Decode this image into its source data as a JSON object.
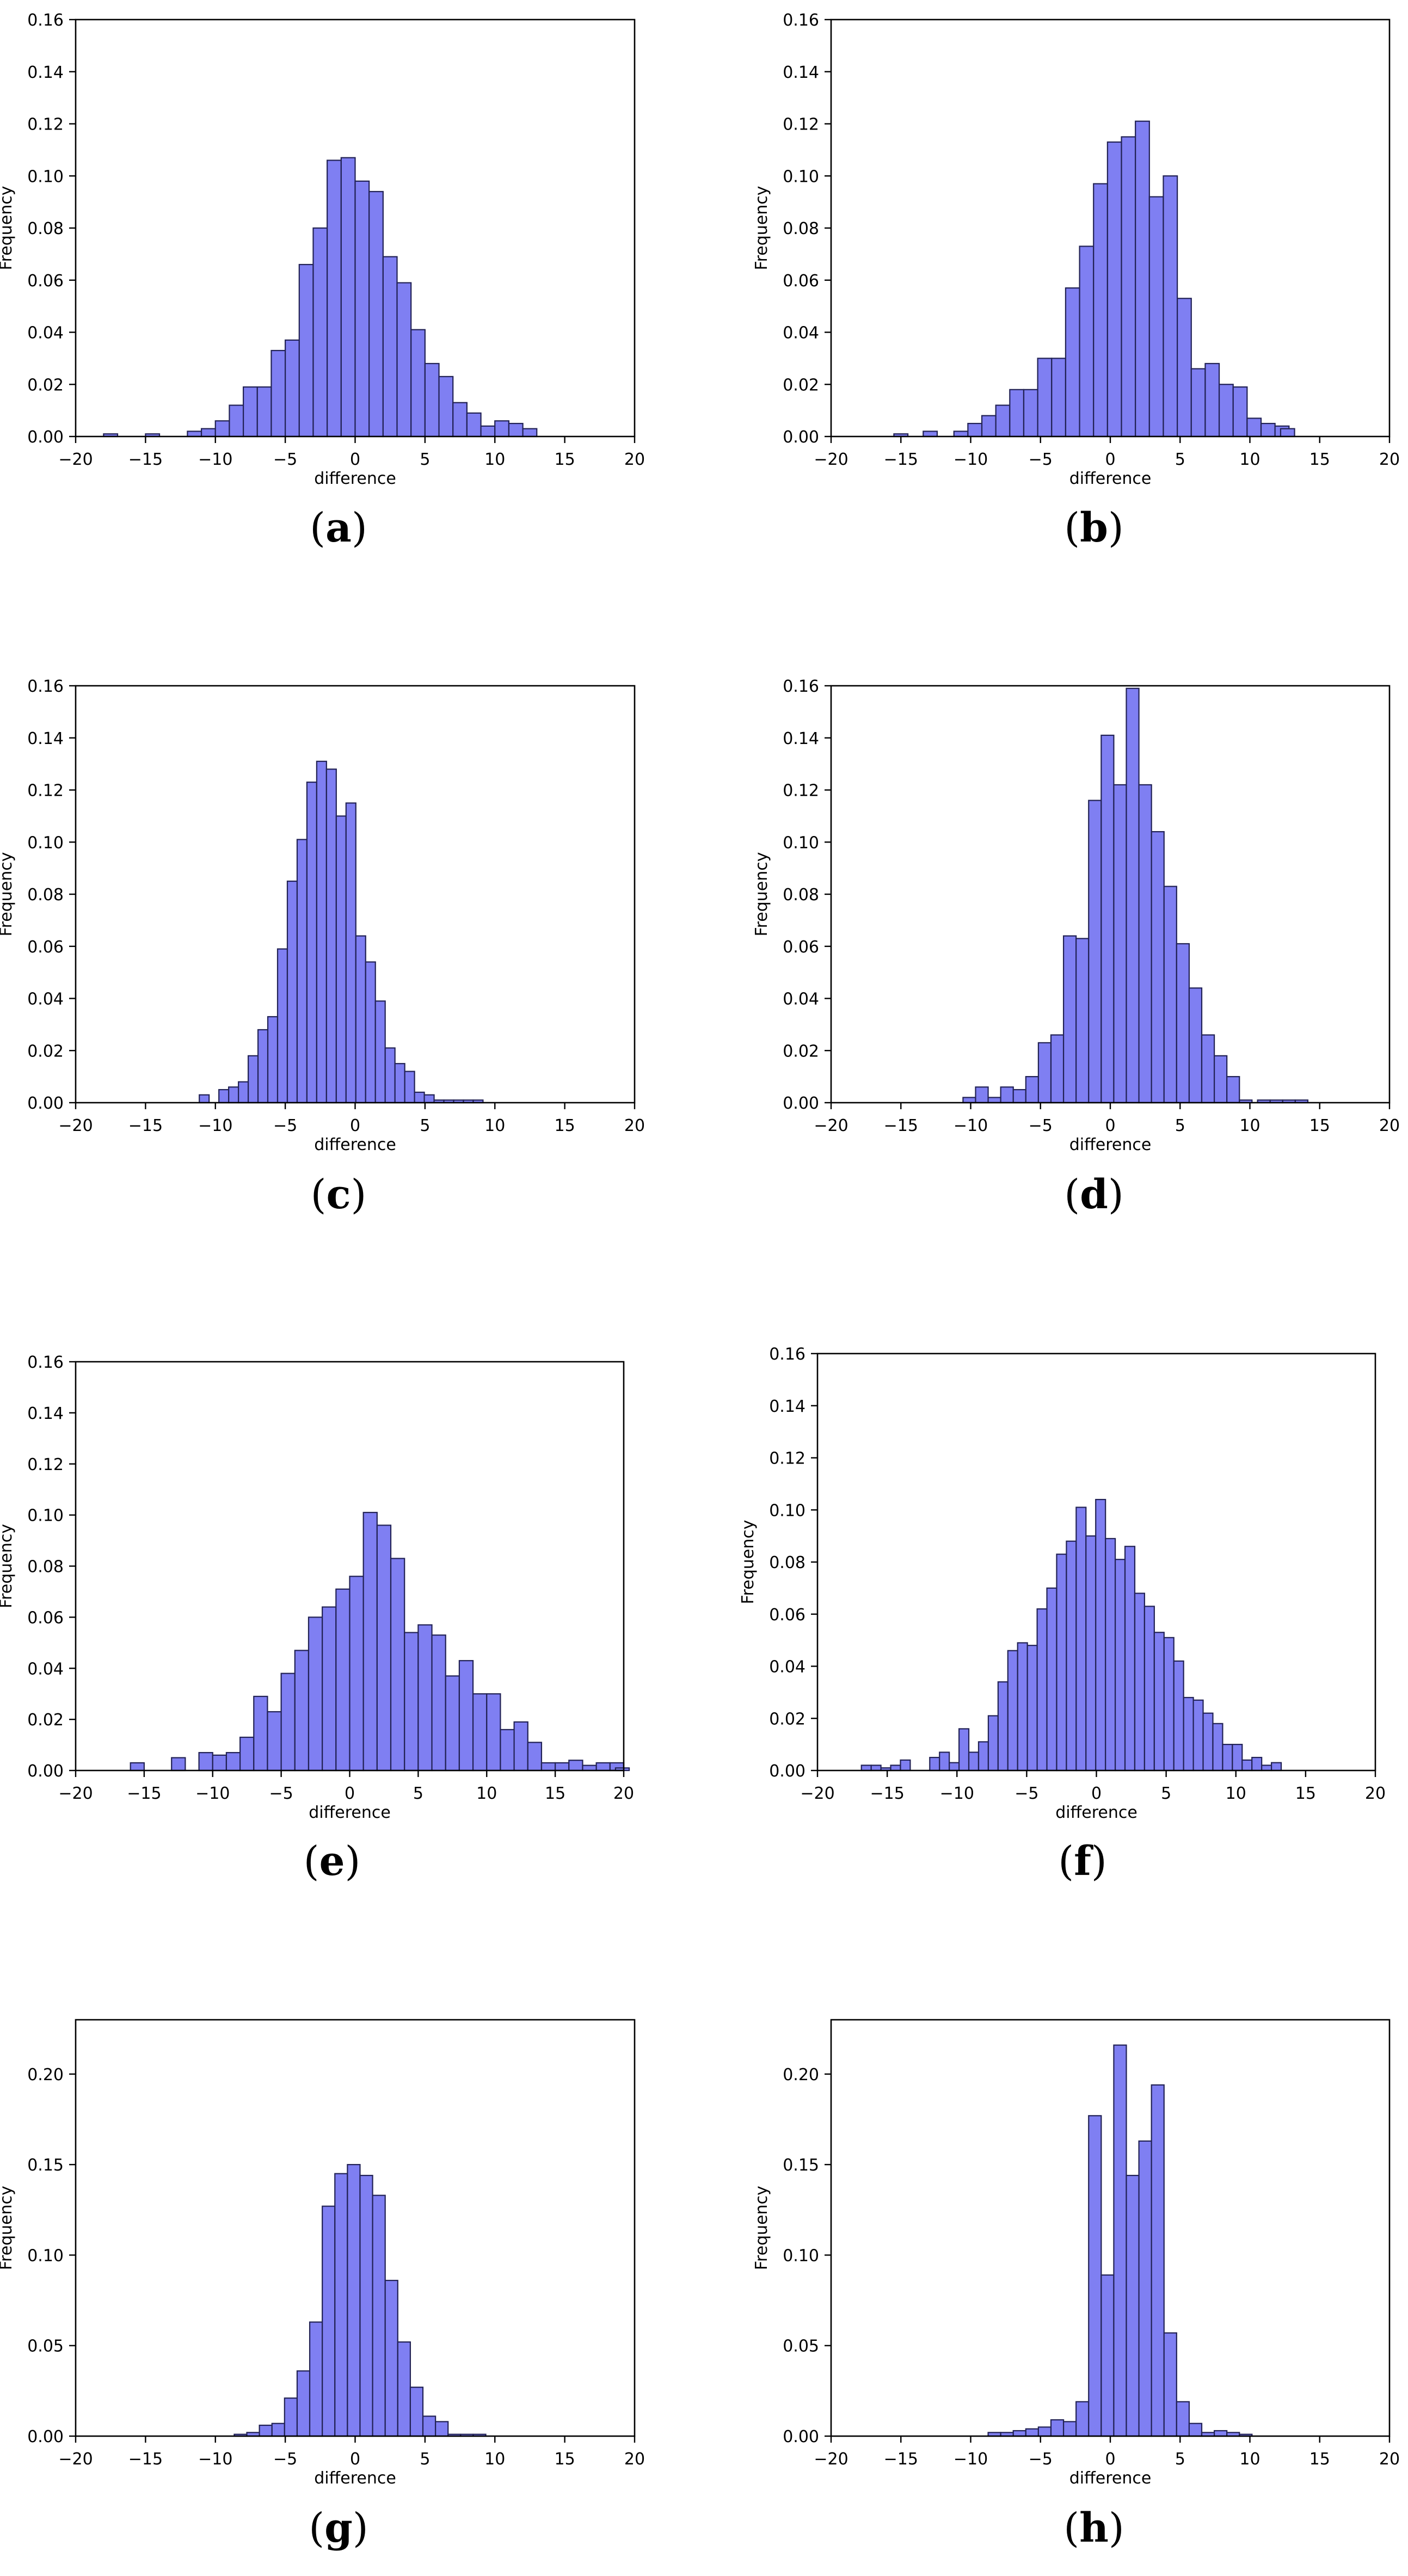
{
  "chart_data": [
    {
      "type": "bar",
      "caption": "a",
      "xlabel": "difference",
      "ylabel": "Frequency",
      "xlim": [
        -20,
        20
      ],
      "ylim": [
        0,
        0.16
      ],
      "xticks": [
        "−20",
        "−15",
        "−10",
        "−5",
        "0",
        "5",
        "10",
        "15",
        "20"
      ],
      "yticks": [
        "0.00",
        "0.02",
        "0.04",
        "0.06",
        "0.08",
        "0.10",
        "0.12",
        "0.14",
        "0.16"
      ],
      "bin_width": 1.0,
      "bins": [
        [
          -17.5,
          0.001
        ],
        [
          -14.5,
          0.001
        ],
        [
          -11.5,
          0.002
        ],
        [
          -10.5,
          0.003
        ],
        [
          -9.5,
          0.006
        ],
        [
          -8.5,
          0.012
        ],
        [
          -7.5,
          0.019
        ],
        [
          -6.5,
          0.019
        ],
        [
          -5.5,
          0.033
        ],
        [
          -4.5,
          0.037
        ],
        [
          -3.5,
          0.066
        ],
        [
          -2.5,
          0.08
        ],
        [
          -1.5,
          0.106
        ],
        [
          -0.5,
          0.107
        ],
        [
          0.5,
          0.098
        ],
        [
          1.5,
          0.094
        ],
        [
          2.5,
          0.069
        ],
        [
          3.5,
          0.059
        ],
        [
          4.5,
          0.041
        ],
        [
          5.5,
          0.028
        ],
        [
          6.5,
          0.023
        ],
        [
          7.5,
          0.013
        ],
        [
          8.5,
          0.009
        ],
        [
          9.5,
          0.004
        ],
        [
          10.5,
          0.006
        ],
        [
          11.5,
          0.005
        ],
        [
          12.5,
          0.003
        ]
      ]
    },
    {
      "type": "bar",
      "caption": "b",
      "xlabel": "difference",
      "ylabel": "Frequency",
      "xlim": [
        -20,
        20
      ],
      "ylim": [
        0,
        0.16
      ],
      "xticks": [
        "−20",
        "−15",
        "−10",
        "−5",
        "0",
        "5",
        "10",
        "15",
        "20"
      ],
      "yticks": [
        "0.00",
        "0.02",
        "0.04",
        "0.06",
        "0.08",
        "0.10",
        "0.12",
        "0.14",
        "0.16"
      ],
      "bin_width": 1.0,
      "bins": [
        [
          -15,
          0.001
        ],
        [
          -12.9,
          0.002
        ],
        [
          -10.7,
          0.002
        ],
        [
          -9.7,
          0.005
        ],
        [
          -8.7,
          0.008
        ],
        [
          -7.7,
          0.012
        ],
        [
          -6.7,
          0.018
        ],
        [
          -5.7,
          0.018
        ],
        [
          -4.7,
          0.03
        ],
        [
          -3.7,
          0.03
        ],
        [
          -2.7,
          0.057
        ],
        [
          -1.7,
          0.073
        ],
        [
          -0.7,
          0.097
        ],
        [
          0.3,
          0.113
        ],
        [
          1.3,
          0.115
        ],
        [
          2.3,
          0.121
        ],
        [
          3.3,
          0.092
        ],
        [
          4.3,
          0.1
        ],
        [
          5.3,
          0.053
        ],
        [
          6.3,
          0.026
        ],
        [
          7.3,
          0.028
        ],
        [
          8.3,
          0.02
        ],
        [
          9.3,
          0.019
        ],
        [
          10.3,
          0.007
        ],
        [
          11.3,
          0.005
        ],
        [
          12.3,
          0.004
        ],
        [
          12.7,
          0.003
        ]
      ]
    },
    {
      "type": "bar",
      "caption": "c",
      "xlabel": "difference",
      "ylabel": "Frequency",
      "xlim": [
        -20,
        20
      ],
      "ylim": [
        0,
        0.16
      ],
      "xticks": [
        "−20",
        "−15",
        "−10",
        "−5",
        "0",
        "5",
        "10",
        "15",
        "20"
      ],
      "yticks": [
        "0.00",
        "0.02",
        "0.04",
        "0.06",
        "0.08",
        "0.10",
        "0.12",
        "0.14",
        "0.16"
      ],
      "bin_width": 0.7,
      "bins": [
        [
          -10.8,
          0.003
        ],
        [
          -9.4,
          0.005
        ],
        [
          -8.7,
          0.006
        ],
        [
          -8.0,
          0.008
        ],
        [
          -7.3,
          0.018
        ],
        [
          -6.6,
          0.028
        ],
        [
          -5.9,
          0.033
        ],
        [
          -5.2,
          0.059
        ],
        [
          -4.5,
          0.085
        ],
        [
          -3.8,
          0.101
        ],
        [
          -3.1,
          0.123
        ],
        [
          -2.4,
          0.131
        ],
        [
          -1.7,
          0.128
        ],
        [
          -1.0,
          0.11
        ],
        [
          -0.3,
          0.115
        ],
        [
          0.4,
          0.064
        ],
        [
          1.1,
          0.054
        ],
        [
          1.8,
          0.039
        ],
        [
          2.5,
          0.021
        ],
        [
          3.2,
          0.015
        ],
        [
          3.9,
          0.012
        ],
        [
          4.6,
          0.004
        ],
        [
          5.3,
          0.003
        ],
        [
          6.0,
          0.001
        ],
        [
          6.7,
          0.001
        ],
        [
          7.4,
          0.001
        ],
        [
          8.1,
          0.001
        ],
        [
          8.8,
          0.001
        ]
      ]
    },
    {
      "type": "bar",
      "caption": "d",
      "xlabel": "difference",
      "ylabel": "Frequency",
      "xlim": [
        -20,
        20
      ],
      "ylim": [
        0,
        0.16
      ],
      "xticks": [
        "−20",
        "−15",
        "−10",
        "−5",
        "0",
        "5",
        "10",
        "15",
        "20"
      ],
      "yticks": [
        "0.00",
        "0.02",
        "0.04",
        "0.06",
        "0.08",
        "0.10",
        "0.12",
        "0.14",
        "0.16"
      ],
      "bin_width": 0.9,
      "bins": [
        [
          -10.1,
          0.002
        ],
        [
          -9.2,
          0.006
        ],
        [
          -8.3,
          0.002
        ],
        [
          -7.4,
          0.006
        ],
        [
          -6.5,
          0.005
        ],
        [
          -5.6,
          0.01
        ],
        [
          -4.7,
          0.023
        ],
        [
          -3.8,
          0.026
        ],
        [
          -2.9,
          0.064
        ],
        [
          -2.0,
          0.063
        ],
        [
          -1.1,
          0.116
        ],
        [
          -0.2,
          0.141
        ],
        [
          0.7,
          0.122
        ],
        [
          1.6,
          0.159
        ],
        [
          2.5,
          0.122
        ],
        [
          3.4,
          0.104
        ],
        [
          4.3,
          0.083
        ],
        [
          5.2,
          0.061
        ],
        [
          6.1,
          0.044
        ],
        [
          7.0,
          0.026
        ],
        [
          7.9,
          0.018
        ],
        [
          8.8,
          0.01
        ],
        [
          9.7,
          0.001
        ],
        [
          11.0,
          0.001
        ],
        [
          11.9,
          0.001
        ],
        [
          12.8,
          0.001
        ],
        [
          13.7,
          0.001
        ]
      ]
    },
    {
      "type": "bar",
      "caption": "e",
      "xlabel": "difference",
      "ylabel": "Frequency",
      "xlim": [
        -20,
        20
      ],
      "ylim": [
        0,
        0.16
      ],
      "xticks": [
        "−20",
        "−15",
        "−10",
        "−5",
        "0",
        "5",
        "10",
        "15",
        "20"
      ],
      "yticks": [
        "0.00",
        "0.02",
        "0.04",
        "0.06",
        "0.08",
        "0.10",
        "0.12",
        "0.14",
        "0.16"
      ],
      "bin_width": 1.0,
      "bins": [
        [
          -15.5,
          0.003
        ],
        [
          -12.5,
          0.005
        ],
        [
          -10.5,
          0.007
        ],
        [
          -9.5,
          0.006
        ],
        [
          -8.5,
          0.007
        ],
        [
          -7.5,
          0.013
        ],
        [
          -6.5,
          0.029
        ],
        [
          -5.5,
          0.023
        ],
        [
          -4.5,
          0.038
        ],
        [
          -3.5,
          0.047
        ],
        [
          -2.5,
          0.06
        ],
        [
          -1.5,
          0.064
        ],
        [
          -0.5,
          0.071
        ],
        [
          0.5,
          0.076
        ],
        [
          1.5,
          0.101
        ],
        [
          2.5,
          0.096
        ],
        [
          3.5,
          0.083
        ],
        [
          4.5,
          0.054
        ],
        [
          5.5,
          0.057
        ],
        [
          6.5,
          0.053
        ],
        [
          7.5,
          0.037
        ],
        [
          8.5,
          0.043
        ],
        [
          9.5,
          0.03
        ],
        [
          10.5,
          0.03
        ],
        [
          11.5,
          0.016
        ],
        [
          12.5,
          0.019
        ],
        [
          13.5,
          0.011
        ],
        [
          14.5,
          0.003
        ],
        [
          15.5,
          0.003
        ],
        [
          16.5,
          0.004
        ],
        [
          17.5,
          0.002
        ],
        [
          18.5,
          0.003
        ],
        [
          19.5,
          0.003
        ],
        [
          19.9,
          0.001
        ]
      ]
    },
    {
      "type": "bar",
      "caption": "f",
      "xlabel": "difference",
      "ylabel": "Frequency",
      "xlim": [
        -20,
        20
      ],
      "ylim": [
        0,
        0.16
      ],
      "xticks": [
        "−20",
        "−15",
        "−10",
        "−5",
        "0",
        "5",
        "10",
        "15",
        "20"
      ],
      "yticks": [
        "0.00",
        "0.02",
        "0.04",
        "0.06",
        "0.08",
        "0.10",
        "0.12",
        "0.14",
        "0.16"
      ],
      "bin_width": 0.7,
      "bins": [
        [
          -16.5,
          0.002
        ],
        [
          -15.8,
          0.002
        ],
        [
          -15.1,
          0.001
        ],
        [
          -14.4,
          0.002
        ],
        [
          -13.7,
          0.004
        ],
        [
          -11.6,
          0.005
        ],
        [
          -10.9,
          0.007
        ],
        [
          -10.2,
          0.003
        ],
        [
          -9.5,
          0.016
        ],
        [
          -8.8,
          0.007
        ],
        [
          -8.1,
          0.011
        ],
        [
          -7.4,
          0.021
        ],
        [
          -6.7,
          0.034
        ],
        [
          -6.0,
          0.046
        ],
        [
          -5.3,
          0.049
        ],
        [
          -4.6,
          0.048
        ],
        [
          -3.9,
          0.062
        ],
        [
          -3.2,
          0.07
        ],
        [
          -2.5,
          0.083
        ],
        [
          -1.8,
          0.088
        ],
        [
          -1.1,
          0.101
        ],
        [
          -0.4,
          0.09
        ],
        [
          0.3,
          0.104
        ],
        [
          1.0,
          0.089
        ],
        [
          1.7,
          0.081
        ],
        [
          2.4,
          0.086
        ],
        [
          3.1,
          0.068
        ],
        [
          3.8,
          0.063
        ],
        [
          4.5,
          0.053
        ],
        [
          5.2,
          0.051
        ],
        [
          5.9,
          0.042
        ],
        [
          6.6,
          0.028
        ],
        [
          7.3,
          0.027
        ],
        [
          8.0,
          0.022
        ],
        [
          8.7,
          0.018
        ],
        [
          9.4,
          0.01
        ],
        [
          10.1,
          0.01
        ],
        [
          10.8,
          0.004
        ],
        [
          11.5,
          0.005
        ],
        [
          12.2,
          0.002
        ],
        [
          12.9,
          0.003
        ]
      ]
    },
    {
      "type": "bar",
      "caption": "g",
      "xlabel": "difference",
      "ylabel": "Frequency",
      "xlim": [
        -20,
        20
      ],
      "ylim": [
        0,
        0.23
      ],
      "xticks": [
        "−20",
        "−15",
        "−10",
        "−5",
        "0",
        "5",
        "10",
        "15",
        "20"
      ],
      "yticks": [
        "0.00",
        "0.05",
        "0.10",
        "0.15",
        "0.20"
      ],
      "bin_width": 0.9,
      "bins": [
        [
          -8.2,
          0.001
        ],
        [
          -7.3,
          0.002
        ],
        [
          -6.4,
          0.006
        ],
        [
          -5.5,
          0.007
        ],
        [
          -4.6,
          0.021
        ],
        [
          -3.7,
          0.036
        ],
        [
          -2.8,
          0.063
        ],
        [
          -1.9,
          0.127
        ],
        [
          -1.0,
          0.145
        ],
        [
          -0.1,
          0.15
        ],
        [
          0.8,
          0.144
        ],
        [
          1.7,
          0.133
        ],
        [
          2.6,
          0.086
        ],
        [
          3.5,
          0.052
        ],
        [
          4.4,
          0.027
        ],
        [
          5.3,
          0.011
        ],
        [
          6.2,
          0.008
        ],
        [
          7.1,
          0.001
        ],
        [
          8.0,
          0.001
        ],
        [
          8.9,
          0.001
        ]
      ]
    },
    {
      "type": "bar",
      "caption": "h",
      "xlabel": "difference",
      "ylabel": "Frequency",
      "xlim": [
        -20,
        20
      ],
      "ylim": [
        0,
        0.23
      ],
      "xticks": [
        "−20",
        "−15",
        "−10",
        "−5",
        "0",
        "5",
        "10",
        "15",
        "20"
      ],
      "yticks": [
        "0.00",
        "0.05",
        "0.10",
        "0.15",
        "0.20"
      ],
      "bin_width": 0.9,
      "bins": [
        [
          -8.3,
          0.002
        ],
        [
          -7.4,
          0.002
        ],
        [
          -6.5,
          0.003
        ],
        [
          -5.6,
          0.004
        ],
        [
          -4.7,
          0.005
        ],
        [
          -3.8,
          0.009
        ],
        [
          -2.9,
          0.008
        ],
        [
          -2.0,
          0.019
        ],
        [
          -1.1,
          0.177
        ],
        [
          -0.2,
          0.089
        ],
        [
          0.7,
          0.216
        ],
        [
          1.6,
          0.144
        ],
        [
          2.5,
          0.163
        ],
        [
          3.4,
          0.194
        ],
        [
          4.3,
          0.057
        ],
        [
          5.2,
          0.019
        ],
        [
          6.1,
          0.007
        ],
        [
          7.0,
          0.002
        ],
        [
          7.9,
          0.003
        ],
        [
          8.8,
          0.002
        ],
        [
          9.7,
          0.001
        ]
      ]
    }
  ],
  "colors": {
    "bar_fill": "#7f7ff2",
    "bar_edge": "#222255",
    "axis": "#000000"
  }
}
